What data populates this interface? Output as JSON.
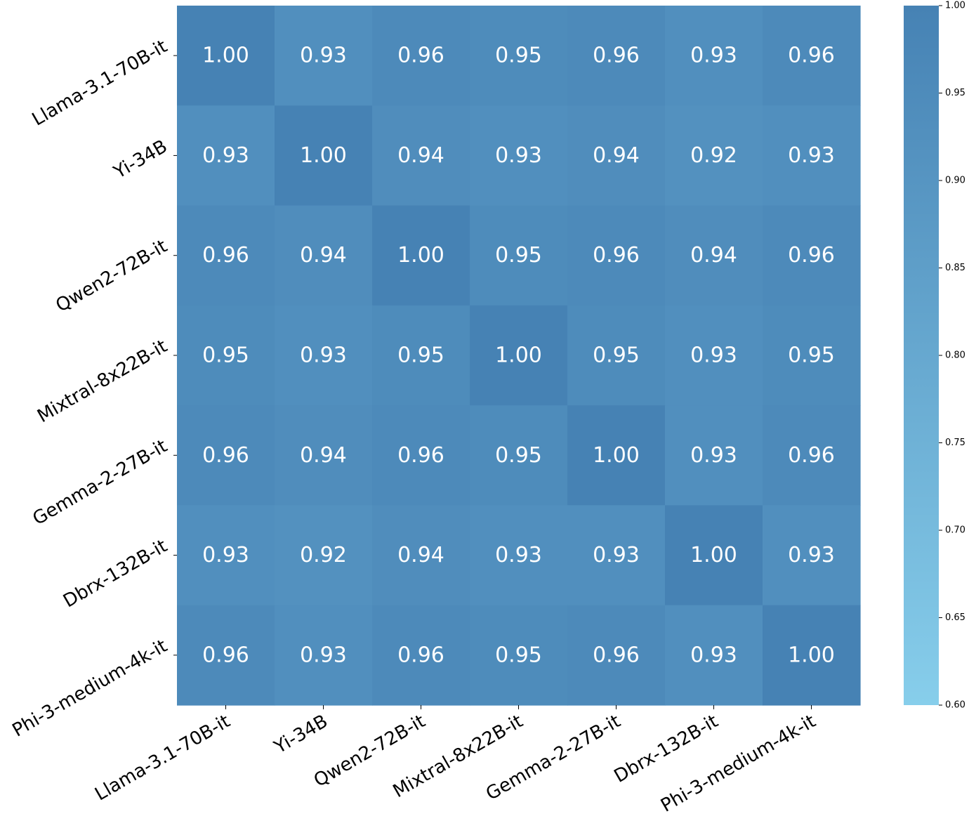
{
  "chart_data": {
    "type": "heatmap",
    "title": "",
    "xlabel": "",
    "ylabel": "",
    "x_categories": [
      "Llama-3.1-70B-it",
      "Yi-34B",
      "Qwen2-72B-it",
      "Mixtral-8x22B-it",
      "Gemma-2-27B-it",
      "Dbrx-132B-it",
      "Phi-3-medium-4k-it"
    ],
    "y_categories": [
      "Llama-3.1-70B-it",
      "Yi-34B",
      "Qwen2-72B-it",
      "Mixtral-8x22B-it",
      "Gemma-2-27B-it",
      "Dbrx-132B-it",
      "Phi-3-medium-4k-it"
    ],
    "values": [
      [
        1.0,
        0.93,
        0.96,
        0.95,
        0.96,
        0.93,
        0.96
      ],
      [
        0.93,
        1.0,
        0.94,
        0.93,
        0.94,
        0.92,
        0.93
      ],
      [
        0.96,
        0.94,
        1.0,
        0.95,
        0.96,
        0.94,
        0.96
      ],
      [
        0.95,
        0.93,
        0.95,
        1.0,
        0.95,
        0.93,
        0.95
      ],
      [
        0.96,
        0.94,
        0.96,
        0.95,
        1.0,
        0.93,
        0.96
      ],
      [
        0.93,
        0.92,
        0.94,
        0.93,
        0.93,
        1.0,
        0.93
      ],
      [
        0.96,
        0.93,
        0.96,
        0.95,
        0.96,
        0.93,
        1.0
      ]
    ],
    "value_format": "0.00",
    "colorbar": {
      "min": 0.6,
      "max": 1.0,
      "ticks": [
        "0.60",
        "0.65",
        "0.70",
        "0.75",
        "0.80",
        "0.85",
        "0.90",
        "0.95",
        "1.00"
      ],
      "color_low": "#87ceeb",
      "color_high": "#4682b4"
    },
    "grid": false,
    "legend": "colorbar-right"
  }
}
